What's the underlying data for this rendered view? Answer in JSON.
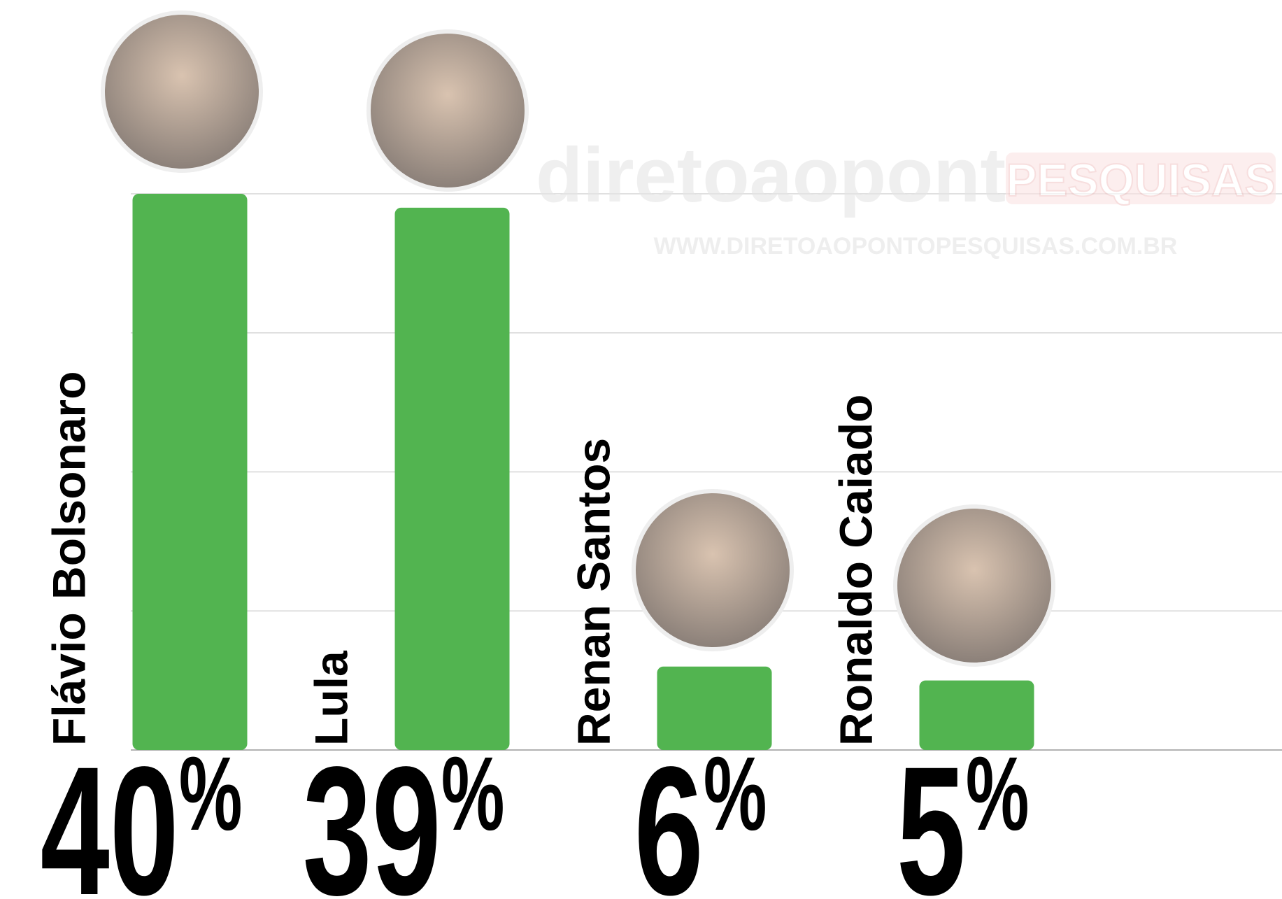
{
  "chart_data": {
    "type": "bar",
    "categories": [
      "Flávio Bolsonaro",
      "Lula",
      "Renan Santos",
      "Ronaldo Caiado"
    ],
    "values": [
      40,
      39,
      6,
      5
    ],
    "value_labels": [
      "40%",
      "39%",
      "6%",
      "5%"
    ],
    "color": "#52b450",
    "ylim": [
      0,
      40
    ],
    "yticks": [
      0,
      10,
      20,
      30,
      40
    ],
    "grid": true,
    "watermark": {
      "brand": "diretoaoponto",
      "tag": "PESQUISAS",
      "url": "WWW.DIRETOAOPONTOPESQUISAS.COM.BR"
    }
  }
}
